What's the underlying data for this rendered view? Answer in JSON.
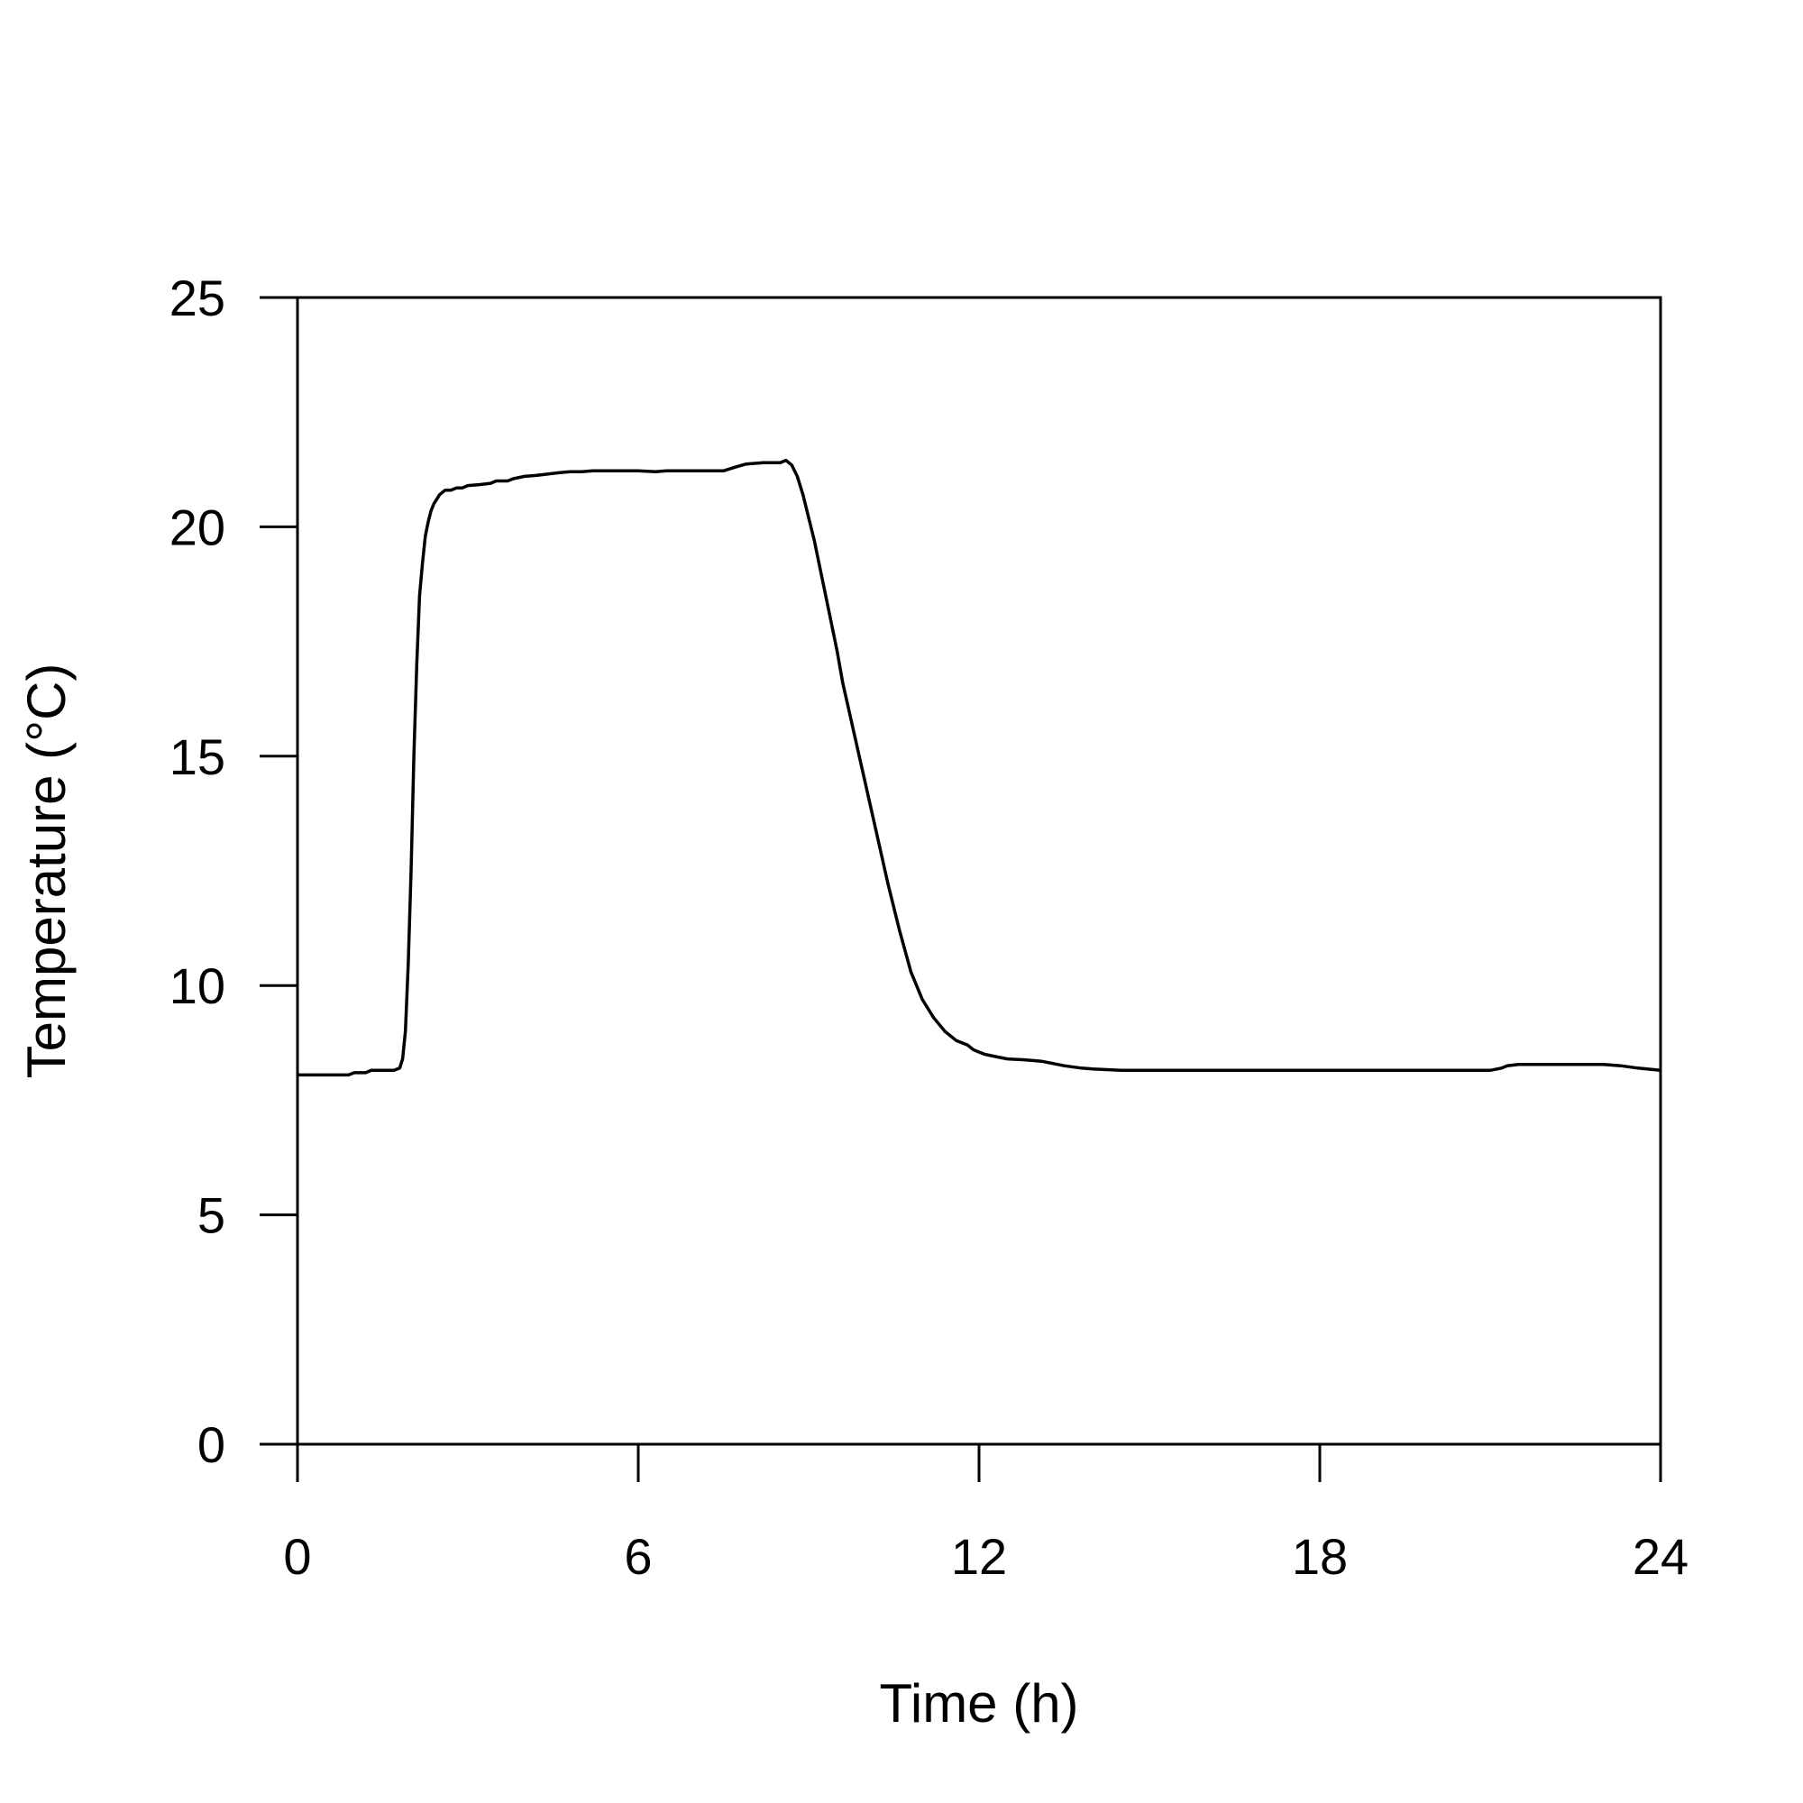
{
  "chart_data": {
    "type": "line",
    "title": "",
    "xlabel": "Time (h)",
    "ylabel": "Temperature (°C)",
    "xlim": [
      0,
      24
    ],
    "ylim": [
      0,
      25
    ],
    "x_ticks": [
      0,
      6,
      12,
      18,
      24
    ],
    "y_ticks": [
      0,
      5,
      10,
      15,
      20,
      25
    ],
    "x_tick_labels": [
      "0",
      "6",
      "12",
      "18",
      "24"
    ],
    "y_tick_labels": [
      "0",
      "5",
      "10",
      "15",
      "20",
      "25"
    ],
    "grid": false,
    "line_color": "#000000",
    "series": [
      {
        "x": [
          0,
          0.5,
          0.9,
          1.0,
          1.2,
          1.3,
          1.5,
          1.7,
          1.8,
          1.85,
          1.9,
          1.95,
          2.0,
          2.05,
          2.1,
          2.15,
          2.2,
          2.25,
          2.3,
          2.35,
          2.4,
          2.45,
          2.5,
          2.6,
          2.7,
          2.8,
          2.9,
          3.0,
          3.2,
          3.4,
          3.5,
          3.7,
          3.8,
          4.0,
          4.2,
          4.4,
          4.6,
          4.8,
          5.0,
          5.2,
          5.5,
          6.0,
          6.3,
          6.5,
          7.0,
          7.5,
          7.7,
          7.9,
          8.2,
          8.5,
          8.6,
          8.7,
          8.8,
          8.9,
          9.0,
          9.1,
          9.2,
          9.3,
          9.4,
          9.5,
          9.6,
          9.8,
          10.0,
          10.2,
          10.4,
          10.6,
          10.8,
          11.0,
          11.2,
          11.4,
          11.6,
          11.8,
          11.9,
          12.0,
          12.1,
          12.3,
          12.5,
          12.8,
          13.1,
          13.3,
          13.5,
          13.8,
          14.0,
          14.5,
          15.0,
          16.0,
          17.0,
          18.0,
          19.0,
          20.0,
          21.0,
          21.2,
          21.3,
          21.5,
          22.0,
          22.5,
          23.0,
          23.3,
          23.6,
          24.0
        ],
        "y": [
          8.05,
          8.05,
          8.05,
          8.1,
          8.1,
          8.15,
          8.15,
          8.15,
          8.2,
          8.4,
          9.0,
          10.5,
          12.5,
          15.0,
          17.0,
          18.5,
          19.2,
          19.8,
          20.1,
          20.35,
          20.5,
          20.6,
          20.7,
          20.8,
          20.8,
          20.85,
          20.85,
          20.9,
          20.92,
          20.95,
          21.0,
          21.0,
          21.05,
          21.1,
          21.12,
          21.15,
          21.18,
          21.2,
          21.2,
          21.22,
          21.22,
          21.22,
          21.2,
          21.22,
          21.22,
          21.22,
          21.3,
          21.37,
          21.4,
          21.4,
          21.45,
          21.35,
          21.1,
          20.7,
          20.2,
          19.7,
          19.1,
          18.5,
          17.9,
          17.3,
          16.6,
          15.5,
          14.4,
          13.3,
          12.2,
          11.2,
          10.3,
          9.7,
          9.3,
          9.0,
          8.8,
          8.7,
          8.6,
          8.55,
          8.5,
          8.45,
          8.4,
          8.38,
          8.35,
          8.3,
          8.25,
          8.2,
          8.18,
          8.15,
          8.15,
          8.15,
          8.15,
          8.15,
          8.15,
          8.15,
          8.15,
          8.2,
          8.25,
          8.28,
          8.28,
          8.28,
          8.28,
          8.25,
          8.2,
          8.15
        ]
      }
    ]
  }
}
